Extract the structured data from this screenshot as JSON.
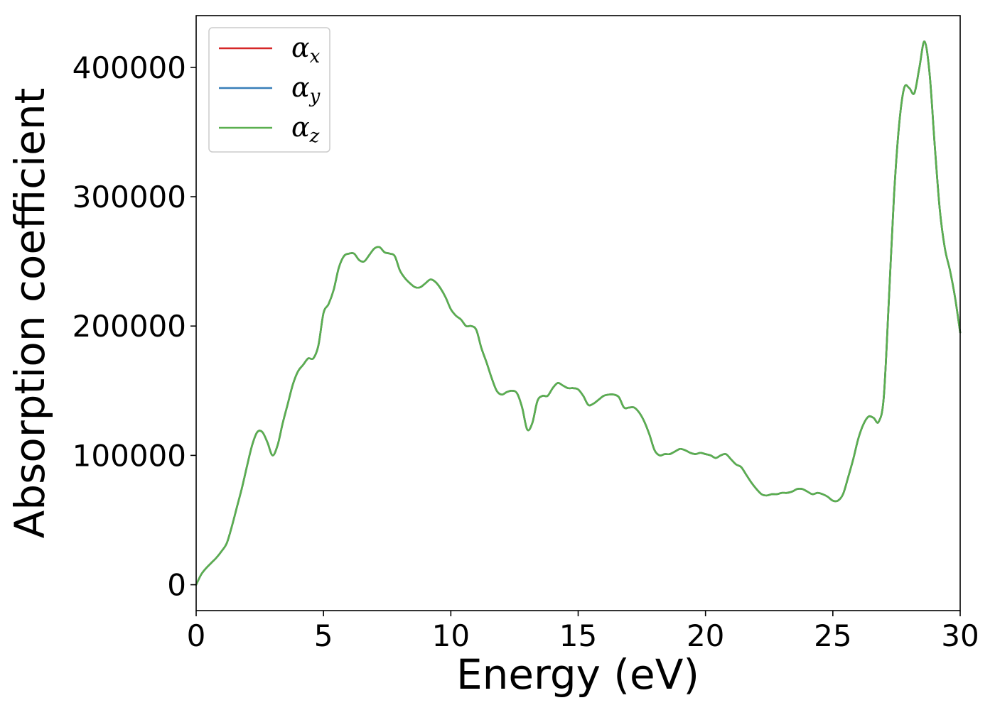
{
  "chart_data": {
    "type": "line",
    "title": "",
    "xlabel": "Energy (eV)",
    "ylabel": "Absorption coefficient",
    "xlim": [
      0,
      30
    ],
    "ylim": [
      -20000,
      440000
    ],
    "xticks": [
      0,
      5,
      10,
      15,
      20,
      25,
      30
    ],
    "xtick_labels": [
      "0",
      "5",
      "10",
      "15",
      "20",
      "25",
      "30"
    ],
    "yticks": [
      0,
      100000,
      200000,
      300000,
      400000
    ],
    "ytick_labels": [
      "0",
      "100000",
      "200000",
      "300000",
      "400000"
    ],
    "grid": false,
    "legend_position": "top-left",
    "x": [
      0,
      0.2,
      0.4,
      0.6,
      0.8,
      1.0,
      1.2,
      1.4,
      1.6,
      1.8,
      2.0,
      2.2,
      2.4,
      2.6,
      2.8,
      3.0,
      3.2,
      3.4,
      3.6,
      3.8,
      4.0,
      4.2,
      4.4,
      4.6,
      4.8,
      5.0,
      5.2,
      5.4,
      5.6,
      5.8,
      6.0,
      6.2,
      6.4,
      6.6,
      6.8,
      7.0,
      7.2,
      7.4,
      7.6,
      7.8,
      8.0,
      8.2,
      8.4,
      8.6,
      8.8,
      9.0,
      9.2,
      9.4,
      9.6,
      9.8,
      10.0,
      10.2,
      10.4,
      10.6,
      10.8,
      11.0,
      11.2,
      11.4,
      11.6,
      11.8,
      12.0,
      12.2,
      12.4,
      12.6,
      12.8,
      13.0,
      13.2,
      13.4,
      13.6,
      13.8,
      14.0,
      14.2,
      14.4,
      14.6,
      14.8,
      15.0,
      15.2,
      15.4,
      15.6,
      15.8,
      16.0,
      16.2,
      16.4,
      16.6,
      16.8,
      17.0,
      17.2,
      17.4,
      17.6,
      17.8,
      18.0,
      18.2,
      18.4,
      18.6,
      18.8,
      19.0,
      19.2,
      19.4,
      19.6,
      19.8,
      20.0,
      20.2,
      20.4,
      20.6,
      20.8,
      21.0,
      21.2,
      21.4,
      21.6,
      21.8,
      22.0,
      22.2,
      22.4,
      22.6,
      22.8,
      23.0,
      23.2,
      23.4,
      23.6,
      23.8,
      24.0,
      24.2,
      24.4,
      24.6,
      24.8,
      25.0,
      25.2,
      25.4,
      25.6,
      25.8,
      26.0,
      26.2,
      26.4,
      26.6,
      26.8,
      27.0,
      27.2,
      27.4,
      27.6,
      27.8,
      28.0,
      28.2,
      28.4,
      28.6,
      28.8,
      29.0,
      29.2,
      29.4,
      29.6,
      29.8,
      30.0
    ],
    "series": [
      {
        "name": "α_x",
        "color": "#d62728",
        "values": [
          0,
          8000,
          13000,
          17000,
          21000,
          26000,
          32000,
          45000,
          60000,
          75000,
          92000,
          108000,
          118000,
          118000,
          110000,
          100000,
          108000,
          125000,
          140000,
          155000,
          165000,
          170000,
          175000,
          175000,
          185000,
          210000,
          217000,
          228000,
          245000,
          254000,
          256000,
          256000,
          251000,
          250000,
          255000,
          260000,
          261000,
          257000,
          256000,
          254000,
          243000,
          237000,
          233000,
          230000,
          230000,
          233000,
          236000,
          234000,
          229000,
          222000,
          213000,
          208000,
          205000,
          200000,
          200000,
          197000,
          183000,
          172000,
          160000,
          150000,
          147000,
          149000,
          150000,
          148000,
          137000,
          120000,
          125000,
          142000,
          146000,
          146000,
          152000,
          156000,
          154000,
          152000,
          152000,
          151000,
          146000,
          139000,
          140000,
          143000,
          146000,
          147000,
          147000,
          145000,
          137000,
          137000,
          137000,
          133000,
          126000,
          116000,
          104000,
          100000,
          101000,
          101000,
          103000,
          105000,
          104000,
          102000,
          101000,
          102000,
          101000,
          100000,
          98000,
          100000,
          101000,
          97000,
          93000,
          91000,
          85000,
          79000,
          74000,
          70000,
          69000,
          70000,
          70000,
          71000,
          71000,
          72000,
          74000,
          74000,
          72000,
          70000,
          71000,
          70000,
          68000,
          65000,
          65000,
          70000,
          83000,
          97000,
          113000,
          124000,
          130000,
          129000,
          126000,
          145000,
          220000,
          300000,
          355000,
          384000,
          384000,
          380000,
          400000,
          420000,
          395000,
          340000,
          290000,
          260000,
          243000,
          222000,
          195000
        ]
      },
      {
        "name": "α_y",
        "color": "#377eb8",
        "values": [
          0,
          8000,
          13000,
          17000,
          21000,
          26000,
          32000,
          45000,
          60000,
          75000,
          92000,
          108000,
          118000,
          118000,
          110000,
          100000,
          108000,
          125000,
          140000,
          155000,
          165000,
          170000,
          175000,
          175000,
          185000,
          210000,
          217000,
          228000,
          245000,
          254000,
          256000,
          256000,
          251000,
          250000,
          255000,
          260000,
          261000,
          257000,
          256000,
          254000,
          243000,
          237000,
          233000,
          230000,
          230000,
          233000,
          236000,
          234000,
          229000,
          222000,
          213000,
          208000,
          205000,
          200000,
          200000,
          197000,
          183000,
          172000,
          160000,
          150000,
          147000,
          149000,
          150000,
          148000,
          137000,
          120000,
          125000,
          142000,
          146000,
          146000,
          152000,
          156000,
          154000,
          152000,
          152000,
          151000,
          146000,
          139000,
          140000,
          143000,
          146000,
          147000,
          147000,
          145000,
          137000,
          137000,
          137000,
          133000,
          126000,
          116000,
          104000,
          100000,
          101000,
          101000,
          103000,
          105000,
          104000,
          102000,
          101000,
          102000,
          101000,
          100000,
          98000,
          100000,
          101000,
          97000,
          93000,
          91000,
          85000,
          79000,
          74000,
          70000,
          69000,
          70000,
          70000,
          71000,
          71000,
          72000,
          74000,
          74000,
          72000,
          70000,
          71000,
          70000,
          68000,
          65000,
          65000,
          70000,
          83000,
          97000,
          113000,
          124000,
          130000,
          129000,
          126000,
          145000,
          220000,
          300000,
          355000,
          384000,
          384000,
          380000,
          400000,
          420000,
          395000,
          340000,
          290000,
          260000,
          243000,
          222000,
          195000
        ]
      },
      {
        "name": "α_z",
        "color": "#5aaf4f",
        "values": [
          0,
          8000,
          13000,
          17000,
          21000,
          26000,
          32000,
          45000,
          60000,
          75000,
          92000,
          108000,
          118000,
          118000,
          110000,
          100000,
          108000,
          125000,
          140000,
          155000,
          165000,
          170000,
          175000,
          175000,
          185000,
          210000,
          217000,
          228000,
          245000,
          254000,
          256000,
          256000,
          251000,
          250000,
          255000,
          260000,
          261000,
          257000,
          256000,
          254000,
          243000,
          237000,
          233000,
          230000,
          230000,
          233000,
          236000,
          234000,
          229000,
          222000,
          213000,
          208000,
          205000,
          200000,
          200000,
          197000,
          183000,
          172000,
          160000,
          150000,
          147000,
          149000,
          150000,
          148000,
          137000,
          120000,
          125000,
          142000,
          146000,
          146000,
          152000,
          156000,
          154000,
          152000,
          152000,
          151000,
          146000,
          139000,
          140000,
          143000,
          146000,
          147000,
          147000,
          145000,
          137000,
          137000,
          137000,
          133000,
          126000,
          116000,
          104000,
          100000,
          101000,
          101000,
          103000,
          105000,
          104000,
          102000,
          101000,
          102000,
          101000,
          100000,
          98000,
          100000,
          101000,
          97000,
          93000,
          91000,
          85000,
          79000,
          74000,
          70000,
          69000,
          70000,
          70000,
          71000,
          71000,
          72000,
          74000,
          74000,
          72000,
          70000,
          71000,
          70000,
          68000,
          65000,
          65000,
          70000,
          83000,
          97000,
          113000,
          124000,
          130000,
          129000,
          126000,
          145000,
          220000,
          300000,
          355000,
          384000,
          384000,
          380000,
          400000,
          420000,
          395000,
          340000,
          290000,
          260000,
          243000,
          222000,
          195000
        ]
      }
    ],
    "legend": [
      {
        "symbol": "α",
        "sub": "x",
        "color": "#d62728"
      },
      {
        "symbol": "α",
        "sub": "y",
        "color": "#377eb8"
      },
      {
        "symbol": "α",
        "sub": "z",
        "color": "#5aaf4f"
      }
    ]
  }
}
